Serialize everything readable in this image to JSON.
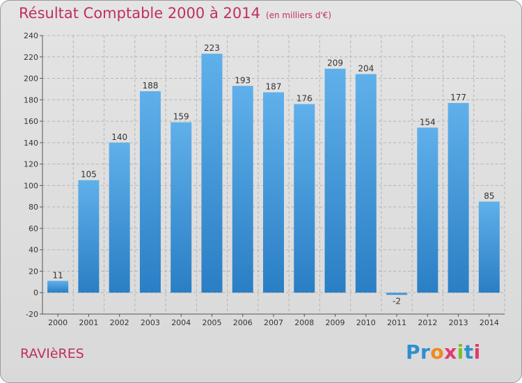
{
  "header": {
    "title": "Résultat Comptable 2000 à 2014",
    "subtitle": "(en milliers d'€)"
  },
  "footer": {
    "commune": "RAVIèRES",
    "logo_text": "Proxiti",
    "logo_letters": [
      "P",
      "r",
      "o",
      "x",
      "i",
      "t",
      "i"
    ],
    "logo_colors": [
      "#2e8fd0",
      "#2e8fd0",
      "#f08a1c",
      "#e23a6c",
      "#7bbf2e",
      "#2e8fd0",
      "#e23a6c"
    ]
  },
  "colors": {
    "title": "#c0305a",
    "bar_light": "#5fb0ea",
    "bar_dark": "#2a7ec4",
    "grid": "#b5b5b5"
  },
  "chart_data": {
    "type": "bar",
    "title": "Résultat Comptable 2000 à 2014",
    "ylabel": "en milliers d'€",
    "xlabel": "",
    "categories": [
      "2000",
      "2001",
      "2002",
      "2003",
      "2004",
      "2005",
      "2006",
      "2007",
      "2008",
      "2009",
      "2010",
      "2011",
      "2012",
      "2013",
      "2014"
    ],
    "values": [
      11,
      105,
      140,
      188,
      159,
      223,
      193,
      187,
      176,
      209,
      204,
      -2,
      154,
      177,
      85
    ],
    "ylim": [
      -20,
      240
    ],
    "yticks": [
      -20,
      0,
      20,
      40,
      60,
      80,
      100,
      120,
      140,
      160,
      180,
      200,
      220,
      240
    ],
    "grid": true,
    "legend": "none"
  }
}
